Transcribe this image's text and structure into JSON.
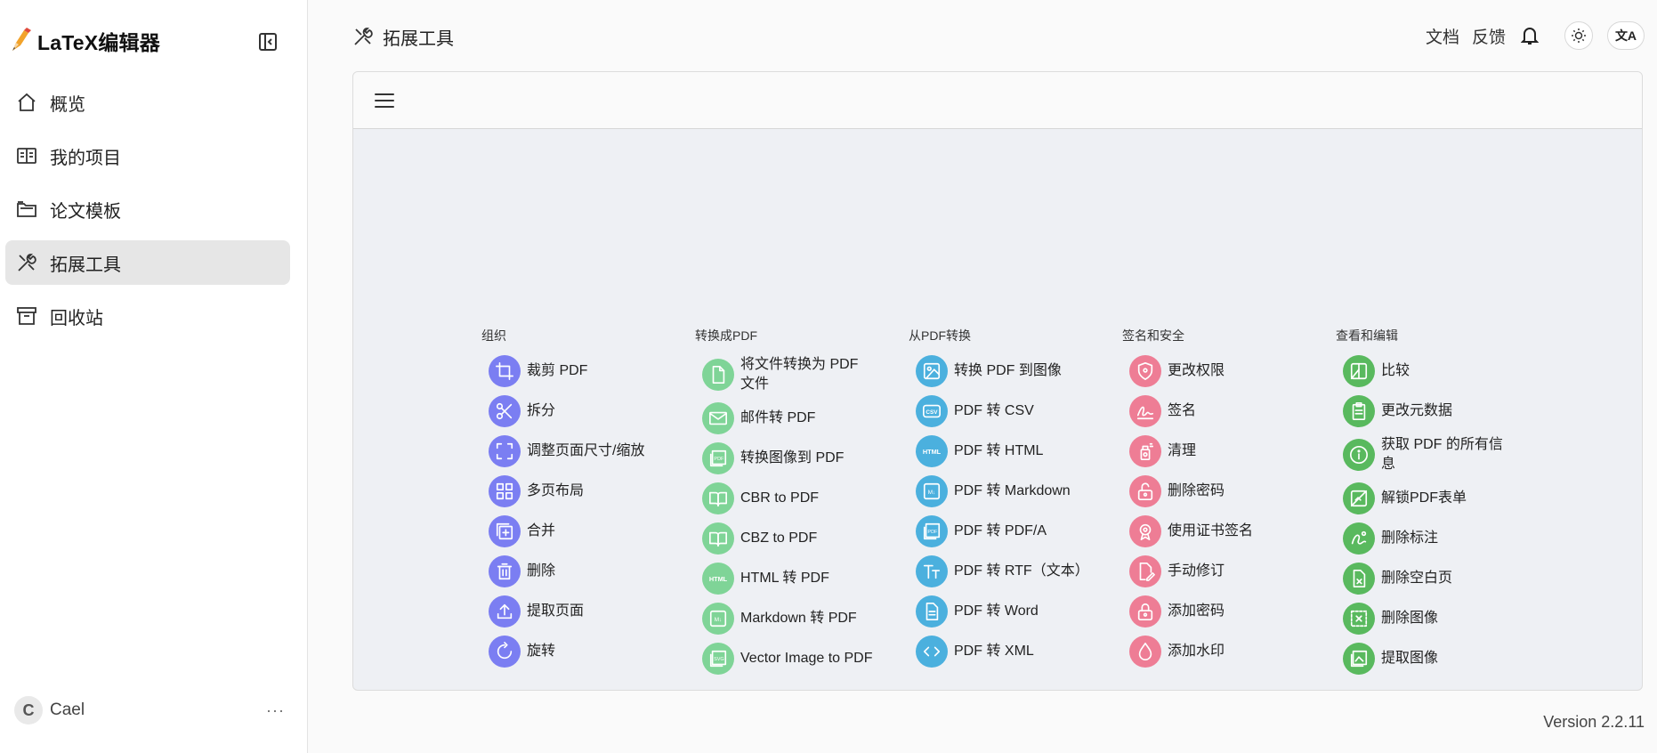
{
  "app": {
    "title": "LaTeX编辑器",
    "version": "Version 2.2.11"
  },
  "sidebar": {
    "items": [
      {
        "label": "概览",
        "icon": "home-icon"
      },
      {
        "label": "我的项目",
        "icon": "book-icon"
      },
      {
        "label": "论文模板",
        "icon": "folders-icon"
      },
      {
        "label": "拓展工具",
        "icon": "tools-icon",
        "active": true
      },
      {
        "label": "回收站",
        "icon": "archive-icon"
      }
    ],
    "user": {
      "initial": "C",
      "name": "Cael",
      "more": "···"
    }
  },
  "header": {
    "title": "拓展工具",
    "docs": "文档",
    "feedback": "反馈",
    "lang_label": "文A"
  },
  "colors": {
    "organize": "#7b7ef2",
    "convert_to": "#7fd497",
    "convert_from": "#4bb0de",
    "security": "#ee7d95",
    "view_edit": "#59b95e"
  },
  "columns": [
    {
      "title": "组织",
      "color": "#7b7ef2",
      "tools": [
        {
          "label": "裁剪 PDF",
          "icon": "crop-icon"
        },
        {
          "label": "拆分",
          "icon": "scissors-icon"
        },
        {
          "label": "调整页面尺寸/缩放",
          "icon": "scan-icon"
        },
        {
          "label": "多页布局",
          "icon": "grid-icon"
        },
        {
          "label": "合并",
          "icon": "merge-icon"
        },
        {
          "label": "删除",
          "icon": "trash-icon"
        },
        {
          "label": "提取页面",
          "icon": "upload-icon"
        },
        {
          "label": "旋转",
          "icon": "rotate-icon"
        }
      ]
    },
    {
      "title": "转换成PDF",
      "color": "#7fd497",
      "tools": [
        {
          "label": "将文件转换为 PDF 文件",
          "icon": "file-icon"
        },
        {
          "label": "邮件转 PDF",
          "icon": "mail-icon"
        },
        {
          "label": "转换图像到 PDF",
          "icon": "image-pdf-icon"
        },
        {
          "label": "CBR to PDF",
          "icon": "book-open-icon"
        },
        {
          "label": "CBZ to PDF",
          "icon": "book-open-icon"
        },
        {
          "label": "HTML 转 PDF",
          "icon": "html-icon"
        },
        {
          "label": "Markdown 转 PDF",
          "icon": "markdown-icon"
        },
        {
          "label": "Vector Image to PDF",
          "icon": "vector-icon"
        }
      ]
    },
    {
      "title": "从PDF转换",
      "color": "#4bb0de",
      "tools": [
        {
          "label": "转换 PDF 到图像",
          "icon": "image-icon"
        },
        {
          "label": "PDF 转 CSV",
          "icon": "csv-icon"
        },
        {
          "label": "PDF 转 HTML",
          "icon": "html-icon"
        },
        {
          "label": "PDF 转 Markdown",
          "icon": "markdown-icon"
        },
        {
          "label": "PDF 转 PDF/A",
          "icon": "pdfa-icon"
        },
        {
          "label": "PDF 转 RTF（文本）",
          "icon": "text-icon"
        },
        {
          "label": "PDF 转 Word",
          "icon": "doc-icon"
        },
        {
          "label": "PDF 转 XML",
          "icon": "code-icon"
        }
      ]
    },
    {
      "title": "签名和安全",
      "color": "#ee7d95",
      "tools": [
        {
          "label": "更改权限",
          "icon": "shield-icon"
        },
        {
          "label": "签名",
          "icon": "signature-icon"
        },
        {
          "label": "清理",
          "icon": "spray-icon"
        },
        {
          "label": "删除密码",
          "icon": "unlock-icon"
        },
        {
          "label": "使用证书签名",
          "icon": "certificate-icon"
        },
        {
          "label": "手动修订",
          "icon": "edit-doc-icon"
        },
        {
          "label": "添加密码",
          "icon": "lock-icon"
        },
        {
          "label": "添加水印",
          "icon": "droplet-icon"
        }
      ]
    },
    {
      "title": "查看和编辑",
      "color": "#59b95e",
      "tools": [
        {
          "label": "比较",
          "icon": "compare-icon"
        },
        {
          "label": "更改元数据",
          "icon": "clipboard-icon"
        },
        {
          "label": "获取 PDF 的所有信息",
          "icon": "info-icon"
        },
        {
          "label": "解锁PDF表单",
          "icon": "form-icon"
        },
        {
          "label": "删除标注",
          "icon": "annotation-icon"
        },
        {
          "label": "删除空白页",
          "icon": "blank-page-icon"
        },
        {
          "label": "删除图像",
          "icon": "remove-image-icon"
        },
        {
          "label": "提取图像",
          "icon": "extract-image-icon"
        }
      ]
    }
  ]
}
